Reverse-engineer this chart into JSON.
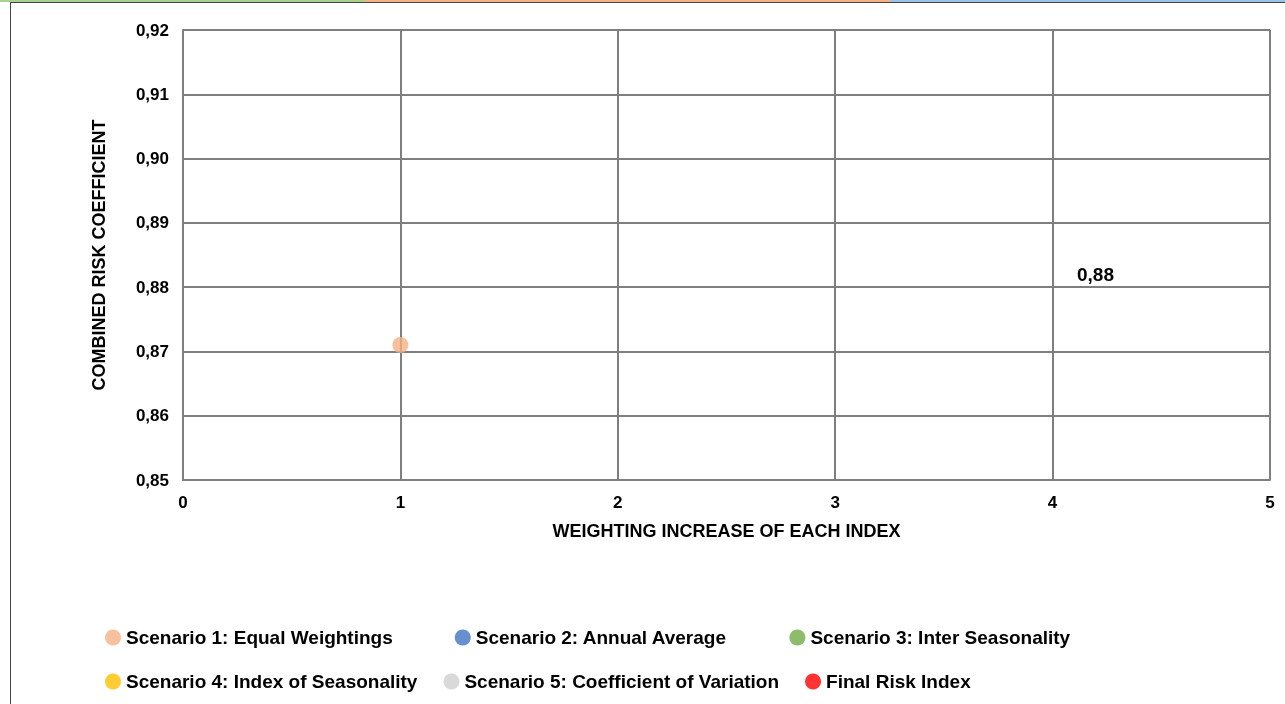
{
  "chart_data": {
    "type": "scatter",
    "xlabel": "WEIGHTING INCREASE OF EACH INDEX",
    "ylabel": "COMBINED RISK COEFFICIENT",
    "xlim": [
      0,
      5
    ],
    "xticks": [
      0,
      1,
      2,
      3,
      4,
      5
    ],
    "ylim": [
      0.85,
      0.92
    ],
    "yticks": [
      {
        "value": 0.85,
        "label": "0,85"
      },
      {
        "value": 0.86,
        "label": "0,86"
      },
      {
        "value": 0.87,
        "label": "0,87"
      },
      {
        "value": 0.88,
        "label": "0,88"
      },
      {
        "value": 0.89,
        "label": "0,89"
      },
      {
        "value": 0.9,
        "label": "0,90"
      },
      {
        "value": 0.91,
        "label": "0,91"
      },
      {
        "value": 0.92,
        "label": "0,92"
      }
    ],
    "series": [
      {
        "name": "Scenario 1: Equal Weightings",
        "color": "#f4b183",
        "x": [
          1
        ],
        "values": [
          0.871
        ]
      },
      {
        "name": "Scenario 2: Annual Average",
        "color": "#4472c4"
      },
      {
        "name": "Scenario 3: Inter Seasonality",
        "color": "#70ad47"
      },
      {
        "name": "Scenario 4: Index of Seasonality",
        "color": "#ffc000"
      },
      {
        "name": "Scenario 5: Coefficient of Variation",
        "color": "#d0d0d0"
      },
      {
        "name": "Final Risk Index",
        "color": "#ff0000"
      }
    ],
    "annotations": [
      "0,88"
    ],
    "grid": true,
    "legend": "bottom",
    "marker": "circle"
  }
}
